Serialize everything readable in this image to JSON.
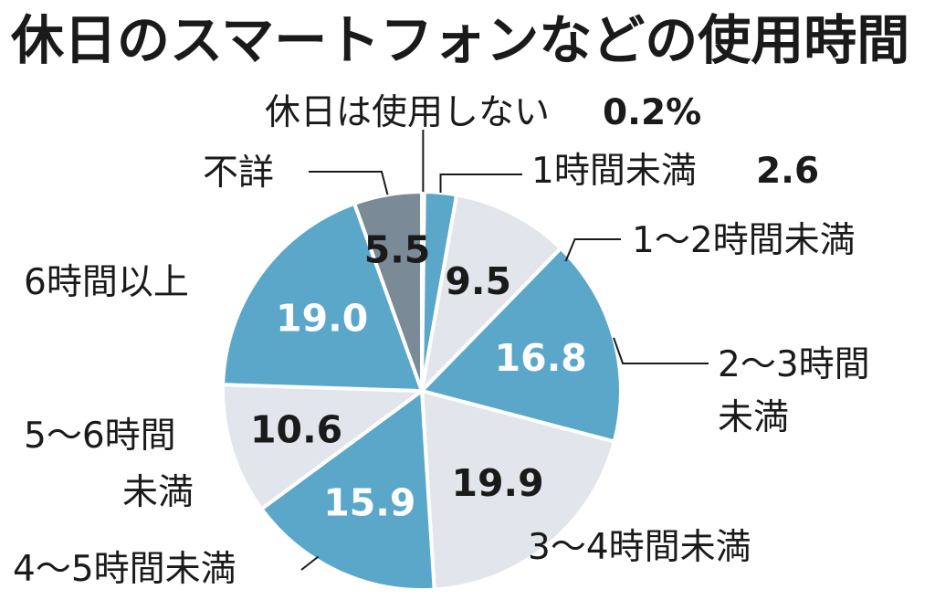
{
  "chart_data": {
    "type": "pie",
    "title": "休日のスマートフォンなどの使用時間",
    "start_angle_deg": 0,
    "direction": "clockwise",
    "slices": [
      {
        "label": "休日は使用しない",
        "value": 0.2,
        "value_label": "0.2%",
        "color": "#e2e6ec",
        "label_color": "#1a1a1a"
      },
      {
        "label": "1時間未満",
        "value": 2.6,
        "value_label": "2.6",
        "color": "#5aa7c9",
        "label_color": "#1a1a1a"
      },
      {
        "label": "1〜2時間未満",
        "value": 9.5,
        "value_label": "9.5",
        "color": "#e2e6ec",
        "label_color": "#1a1a1a"
      },
      {
        "label": "2〜3時間未満",
        "value": 16.8,
        "value_label": "16.8",
        "color": "#5aa7c9",
        "label_color": "#ffffff"
      },
      {
        "label": "3〜4時間未満",
        "value": 19.9,
        "value_label": "19.9",
        "color": "#e2e6ec",
        "label_color": "#1a1a1a"
      },
      {
        "label": "4〜5時間未満",
        "value": 15.9,
        "value_label": "15.9",
        "color": "#5aa7c9",
        "label_color": "#ffffff"
      },
      {
        "label": "5〜6時間未満",
        "value": 10.6,
        "value_label": "10.6",
        "color": "#e2e6ec",
        "label_color": "#1a1a1a"
      },
      {
        "label": "6時間以上",
        "value": 19.0,
        "value_label": "19.0",
        "color": "#5aa7c9",
        "label_color": "#ffffff"
      },
      {
        "label": "不詳",
        "value": 5.5,
        "value_label": "5.5",
        "color": "#7b8a97",
        "label_color": "#1a1a1a"
      }
    ]
  }
}
